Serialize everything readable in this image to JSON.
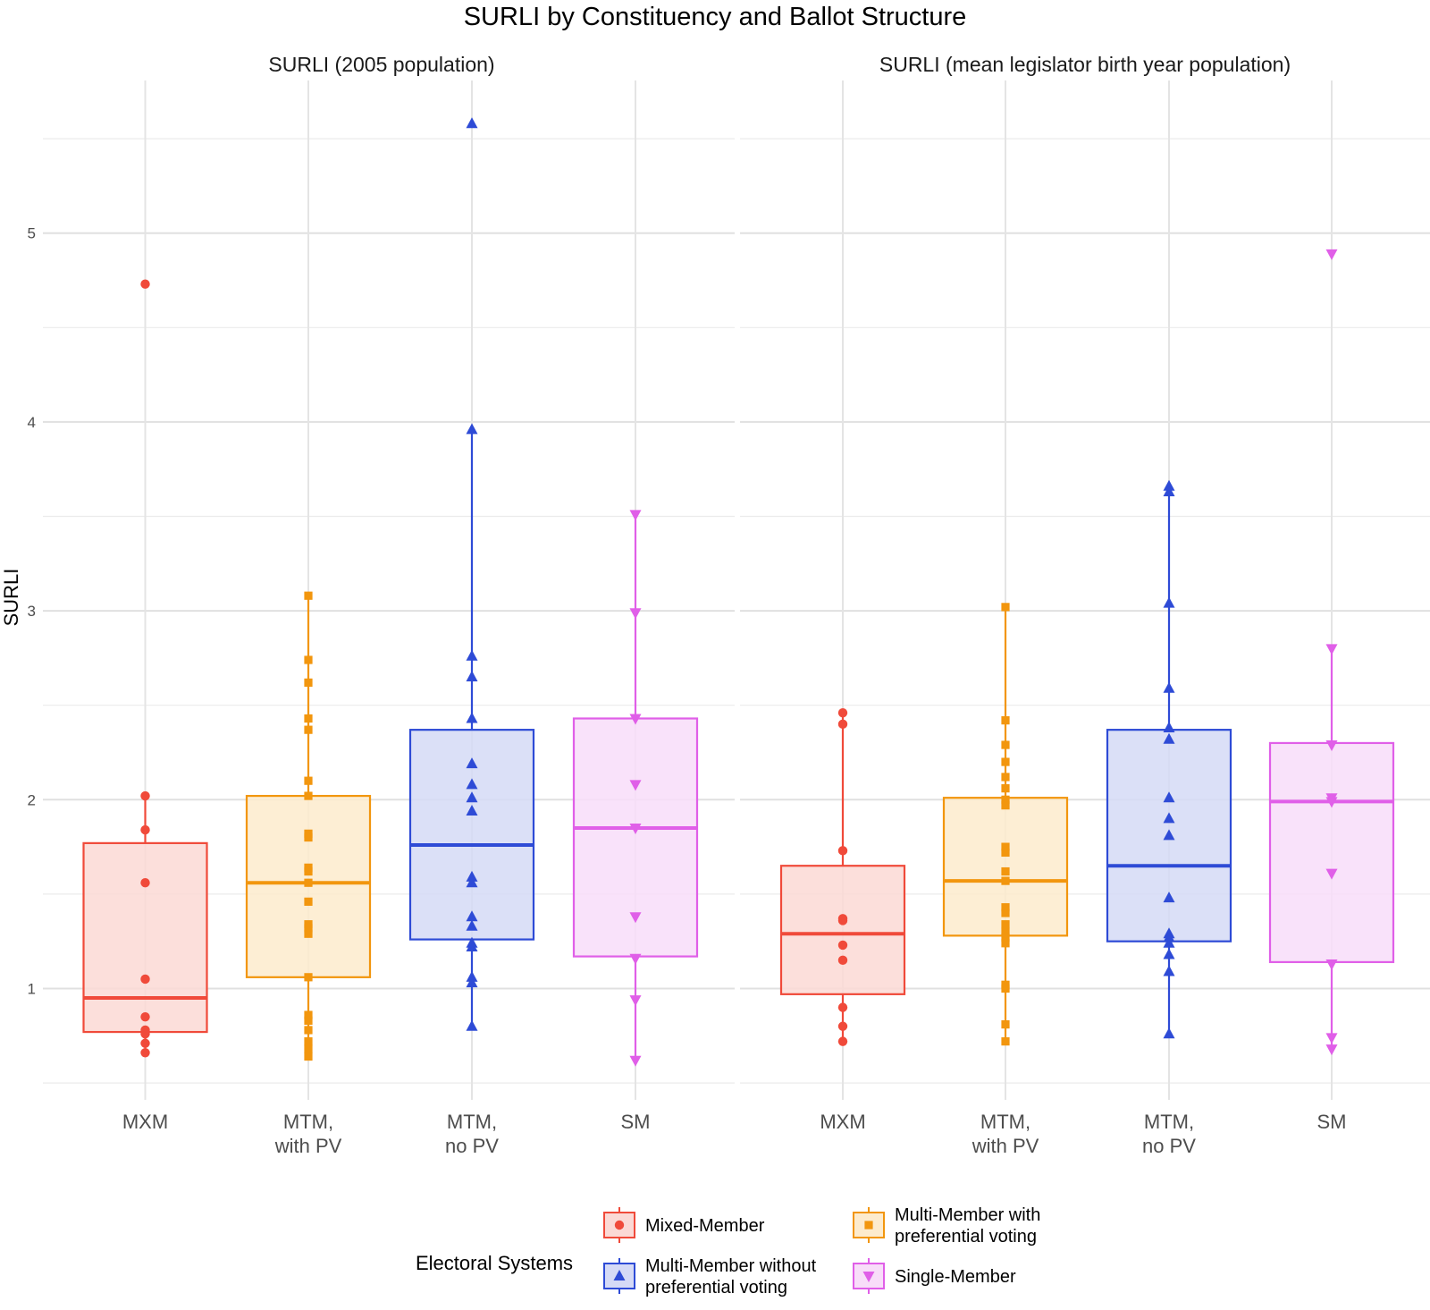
{
  "chart_data": {
    "type": "box",
    "title": "SURLI by Constituency and Ballot Structure",
    "ylabel": "SURLI",
    "xlabel": "",
    "ylim": [
      0.4,
      5.65
    ],
    "yticks": [
      1,
      2,
      3,
      4,
      5
    ],
    "grid": true,
    "legend": {
      "title": "Electoral Systems",
      "position": "bottom",
      "entries": [
        {
          "key": "mxm",
          "label_lines": [
            "Mixed-Member"
          ]
        },
        {
          "key": "mtm_pv",
          "label_lines": [
            "Multi-Member with",
            "preferential voting"
          ]
        },
        {
          "key": "mtm_nopv",
          "label_lines": [
            "Multi-Member without",
            "preferential voting"
          ]
        },
        {
          "key": "sm",
          "label_lines": [
            "Single-Member"
          ]
        }
      ]
    },
    "styles": {
      "mxm": {
        "color": "#F04A3A",
        "fill": "#FBD9D5",
        "shape": "circle"
      },
      "mtm_pv": {
        "color": "#F2960E",
        "fill": "#FDEBCD",
        "shape": "square"
      },
      "mtm_nopv": {
        "color": "#2E4BD6",
        "fill": "#D5DAF6",
        "shape": "triangle-up"
      },
      "sm": {
        "color": "#E05FE8",
        "fill": "#F8DDF9",
        "shape": "triangle-down"
      }
    },
    "categories": [
      {
        "key": "mxm",
        "label_lines": [
          "MXM"
        ]
      },
      {
        "key": "mtm_pv",
        "label_lines": [
          "MTM,",
          "with PV"
        ]
      },
      {
        "key": "mtm_nopv",
        "label_lines": [
          "MTM,",
          "no PV"
        ]
      },
      {
        "key": "sm",
        "label_lines": [
          "SM"
        ]
      }
    ],
    "panels": [
      {
        "title": "SURLI (2005 population)",
        "boxes": [
          {
            "key": "mxm",
            "q1": 0.77,
            "median": 0.95,
            "q3": 1.77,
            "whisker_low": 0.66,
            "whisker_high": 2.02,
            "points": [
              0.66,
              0.71,
              0.76,
              0.78,
              0.85,
              1.05,
              1.56,
              1.84,
              2.02,
              4.73
            ]
          },
          {
            "key": "mtm_pv",
            "q1": 1.06,
            "median": 1.56,
            "q3": 2.02,
            "whisker_low": 0.64,
            "whisker_high": 3.08,
            "points": [
              0.64,
              0.68,
              0.72,
              0.78,
              0.83,
              0.86,
              1.06,
              1.29,
              1.32,
              1.34,
              1.46,
              1.56,
              1.62,
              1.64,
              1.8,
              1.82,
              2.02,
              2.1,
              2.37,
              2.43,
              2.62,
              2.74,
              3.08
            ]
          },
          {
            "key": "mtm_nopv",
            "q1": 1.26,
            "median": 1.76,
            "q3": 2.37,
            "whisker_low": 0.8,
            "whisker_high": 3.96,
            "points": [
              0.8,
              1.03,
              1.06,
              1.22,
              1.24,
              1.33,
              1.38,
              1.56,
              1.59,
              1.94,
              2.01,
              2.08,
              2.19,
              2.43,
              2.65,
              2.76,
              3.96,
              5.58
            ]
          },
          {
            "key": "sm",
            "q1": 1.17,
            "median": 1.85,
            "q3": 2.43,
            "whisker_low": 0.62,
            "whisker_high": 3.51,
            "points": [
              0.62,
              0.94,
              1.16,
              1.38,
              1.85,
              2.08,
              2.43,
              2.99,
              3.51
            ]
          }
        ]
      },
      {
        "title": "SURLI (mean legislator birth year population)",
        "boxes": [
          {
            "key": "mxm",
            "q1": 0.97,
            "median": 1.29,
            "q3": 1.65,
            "whisker_low": 0.72,
            "whisker_high": 2.46,
            "points": [
              0.72,
              0.8,
              0.9,
              1.15,
              1.23,
              1.36,
              1.37,
              1.73,
              2.4,
              2.46
            ]
          },
          {
            "key": "mtm_pv",
            "q1": 1.28,
            "median": 1.57,
            "q3": 2.01,
            "whisker_low": 0.72,
            "whisker_high": 3.02,
            "points": [
              0.72,
              0.81,
              1.0,
              1.02,
              1.24,
              1.27,
              1.3,
              1.34,
              1.4,
              1.43,
              1.57,
              1.62,
              1.72,
              1.75,
              1.97,
              2.0,
              2.06,
              2.12,
              2.2,
              2.29,
              2.42,
              3.02
            ]
          },
          {
            "key": "mtm_nopv",
            "q1": 1.25,
            "median": 1.65,
            "q3": 2.37,
            "whisker_low": 0.76,
            "whisker_high": 3.66,
            "points": [
              0.76,
              1.09,
              1.18,
              1.24,
              1.27,
              1.29,
              1.48,
              1.81,
              1.9,
              2.01,
              2.32,
              2.38,
              2.59,
              3.04,
              3.63,
              3.66
            ]
          },
          {
            "key": "sm",
            "q1": 1.14,
            "median": 1.99,
            "q3": 2.3,
            "whisker_low": 0.68,
            "whisker_high": 2.8,
            "points": [
              0.68,
              0.74,
              1.13,
              1.61,
              1.99,
              2.01,
              2.29,
              2.8,
              4.89
            ]
          }
        ]
      }
    ]
  }
}
